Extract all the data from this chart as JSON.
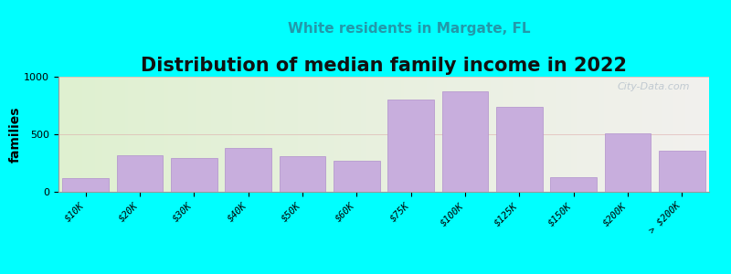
{
  "title": "Distribution of median family income in 2022",
  "subtitle": "White residents in Margate, FL",
  "ylabel": "families",
  "categories": [
    "$10K",
    "$20K",
    "$30K",
    "$40K",
    "$50K",
    "$60K",
    "$75K",
    "$100K",
    "$125K",
    "$150K",
    "$200K",
    "> $200K"
  ],
  "values": [
    120,
    320,
    295,
    380,
    310,
    270,
    800,
    870,
    740,
    130,
    510,
    360
  ],
  "bar_color": "#c8aedd",
  "bar_edge_color": "#b090cc",
  "bg_color": "#00ffff",
  "title_fontsize": 15,
  "subtitle_fontsize": 11,
  "subtitle_color": "#2299aa",
  "ylabel_fontsize": 10,
  "tick_fontsize": 7.5,
  "ylim": [
    0,
    1000
  ],
  "yticks": [
    0,
    500,
    1000
  ],
  "watermark": "City-Data.com",
  "watermark_color": "#b0bcc8"
}
